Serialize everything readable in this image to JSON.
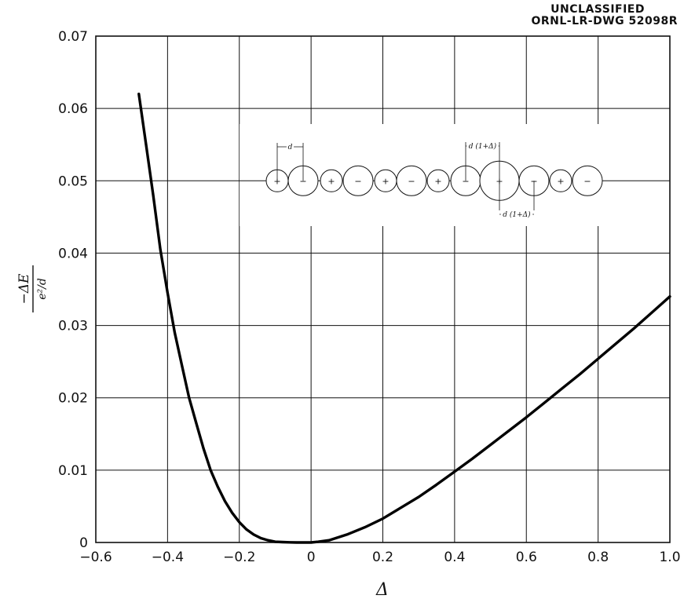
{
  "header": {
    "classification": "UNCLASSIFIED",
    "drawing_id": "ORNL-LR-DWG 52098R"
  },
  "chart_data": {
    "type": "line",
    "title": "",
    "xlabel": "Δ",
    "ylabel_numerator": "−ΔE",
    "ylabel_denominator": "e²/d",
    "xlim": [
      -0.6,
      1.0
    ],
    "ylim": [
      0,
      0.07
    ],
    "grid": true,
    "x_ticks": [
      -0.6,
      -0.4,
      -0.2,
      0,
      0.2,
      0.4,
      0.6,
      0.8,
      1.0
    ],
    "x_tick_labels": [
      "−0.6",
      "−0.4",
      "−0.2",
      "0",
      "0.2",
      "0.4",
      "0.6",
      "0.8",
      "1.0"
    ],
    "y_ticks": [
      0,
      0.01,
      0.02,
      0.03,
      0.04,
      0.05,
      0.06,
      0.07
    ],
    "y_tick_labels": [
      "0",
      "0.01",
      "0.02",
      "0.03",
      "0.04",
      "0.05",
      "0.06",
      "0.07"
    ],
    "series": [
      {
        "x": [
          -0.48,
          -0.46,
          -0.44,
          -0.42,
          -0.4,
          -0.38,
          -0.36,
          -0.34,
          -0.32,
          -0.3,
          -0.28,
          -0.26,
          -0.24,
          -0.22,
          -0.2,
          -0.18,
          -0.16,
          -0.14,
          -0.12,
          -0.1,
          -0.08,
          -0.06,
          -0.04,
          -0.02,
          0,
          0.02,
          0.05,
          0.1,
          0.15,
          0.2,
          0.25,
          0.3,
          0.35,
          0.4,
          0.45,
          0.5,
          0.55,
          0.6,
          0.65,
          0.7,
          0.75,
          0.8,
          0.85,
          0.9,
          0.95,
          1.0
        ],
        "y": [
          0.062,
          0.055,
          0.048,
          0.0405,
          0.0345,
          0.029,
          0.0245,
          0.02,
          0.0165,
          0.013,
          0.01,
          0.0077,
          0.0057,
          0.0041,
          0.0028,
          0.0018,
          0.0011,
          0.0006,
          0.0003,
          0.0001,
          5e-05,
          2e-05,
          0,
          0,
          0,
          0.0001,
          0.0003,
          0.0011,
          0.0021,
          0.0033,
          0.0048,
          0.0063,
          0.008,
          0.0098,
          0.0116,
          0.0135,
          0.0154,
          0.0173,
          0.0193,
          0.0213,
          0.0233,
          0.0254,
          0.0275,
          0.0296,
          0.0318,
          0.034
        ]
      }
    ],
    "inset": {
      "ion_signs": [
        "+",
        "−",
        "+",
        "−",
        "+",
        "−",
        "+",
        "−",
        "+",
        "−",
        "+",
        "−"
      ],
      "dimension_labels": [
        "d",
        "d (1+Δ)",
        "d (1+Δ)"
      ]
    }
  }
}
